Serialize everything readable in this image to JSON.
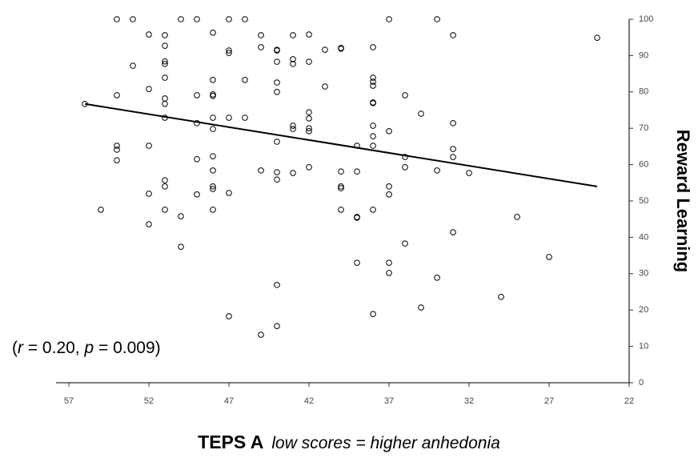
{
  "chart_data": {
    "type": "scatter",
    "x": [
      54,
      53,
      50,
      49,
      47,
      46,
      37,
      34,
      24,
      52,
      51,
      48,
      45,
      43,
      42,
      33,
      51,
      45,
      44,
      44,
      47,
      47,
      41,
      40,
      40,
      38,
      53,
      51,
      51,
      51,
      44,
      43,
      43,
      42,
      46,
      44,
      41,
      48,
      52,
      54,
      49,
      48,
      48,
      51,
      51,
      44,
      38,
      38,
      38,
      56,
      51,
      49,
      48,
      48,
      47,
      46,
      43,
      43,
      42,
      42,
      42,
      42,
      38,
      38,
      38,
      38,
      37,
      35,
      33,
      36,
      44,
      39,
      38,
      54,
      54,
      54,
      52,
      49,
      48,
      48,
      48,
      48,
      44,
      44,
      45,
      43,
      42,
      40,
      39,
      40,
      40,
      36,
      36,
      34,
      33,
      33,
      32,
      37,
      37,
      52,
      51,
      51,
      49,
      47,
      50,
      55,
      52,
      51,
      48,
      40,
      39,
      39,
      38,
      29,
      50,
      39,
      37,
      37,
      36,
      33,
      27,
      34,
      44,
      35,
      30,
      38,
      47,
      44,
      45
    ],
    "values": [
      100,
      100,
      100,
      100,
      100,
      100,
      100,
      100,
      94.9,
      95.8,
      95.6,
      96.3,
      95.6,
      95.6,
      95.8,
      95.6,
      92.7,
      92.3,
      91.6,
      91.4,
      91.4,
      90.7,
      91.6,
      92.1,
      91.9,
      92.3,
      87.2,
      88.4,
      87.7,
      83.9,
      88.3,
      89,
      87.7,
      88.3,
      83.3,
      82.6,
      81.5,
      83.3,
      80.8,
      79.1,
      79.1,
      79.3,
      78.9,
      78.2,
      76.7,
      80,
      83.9,
      81.7,
      82.8,
      76.7,
      72.9,
      71.4,
      72.9,
      69.8,
      72.9,
      72.9,
      70.7,
      69.8,
      74.4,
      72.7,
      70,
      69.2,
      77.1,
      76.9,
      70.7,
      67.8,
      69.2,
      74,
      71.4,
      79.1,
      66.3,
      65.2,
      65.2,
      65.2,
      64.1,
      61.2,
      65.2,
      61.5,
      62.3,
      58.4,
      54,
      53.3,
      57.9,
      55.9,
      58.4,
      57.7,
      59.3,
      58.1,
      58.1,
      54,
      53.5,
      62.1,
      59.3,
      58.4,
      62.1,
      64.3,
      57.7,
      54,
      51.8,
      52,
      55.7,
      54,
      51.8,
      52.2,
      45.8,
      47.6,
      43.6,
      47.6,
      47.6,
      47.6,
      45.6,
      45.4,
      47.6,
      45.6,
      37.4,
      33,
      33,
      30.2,
      38.3,
      41.4,
      34.6,
      28.9,
      26.9,
      20.7,
      23.6,
      18.9,
      18.3,
      15.6,
      13.2
    ],
    "color": "#000000",
    "trendline": {
      "x": [
        56,
        24
      ],
      "values": [
        76.7,
        54
      ],
      "color": "#000000"
    },
    "xlim": [
      57,
      22
    ],
    "xticks": [
      57,
      52,
      47,
      42,
      37,
      32,
      27,
      22
    ],
    "ylim": [
      0,
      100
    ],
    "yticks": [
      0,
      10,
      20,
      30,
      40,
      50,
      60,
      70,
      80,
      90,
      100
    ],
    "ylabel": "Reward Learning",
    "xlabel": "TEPS A",
    "xlabel_note": "low scores = higher anhedonia",
    "annotation": [
      "(",
      "r",
      " = 0.20, ",
      "p",
      " = 0.009)"
    ],
    "grid": false
  }
}
